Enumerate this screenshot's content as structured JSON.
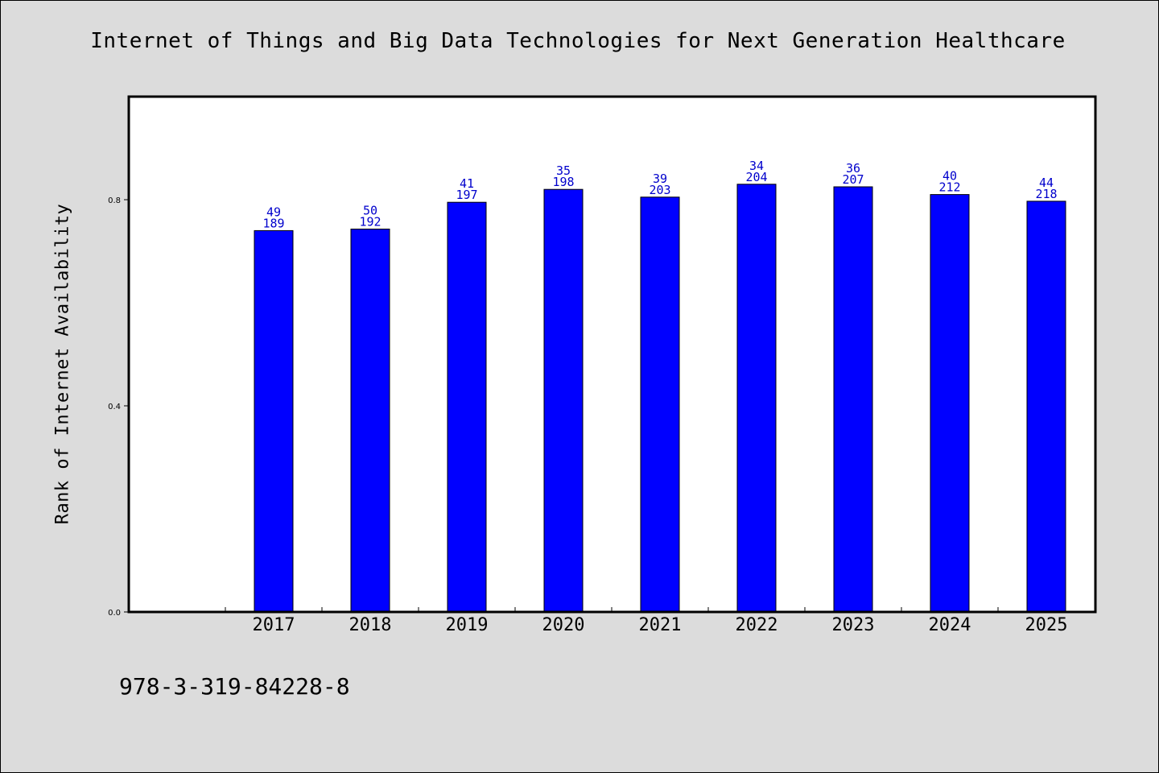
{
  "title": "Internet of Things and Big Data Technologies for Next Generation Healthcare",
  "ylabel": "Rank of Internet Availability",
  "footer_text": "978-3-319-84228-8",
  "colors": {
    "background": "#dcdcdc",
    "plot_background": "#ffffff",
    "bar": "#0000ff",
    "data_label": "#0000cc"
  },
  "chart_data": {
    "type": "bar",
    "title": "Internet of Things and Big Data Technologies for Next Generation Healthcare",
    "xlabel": "",
    "ylabel": "Rank of Internet Availability",
    "categories": [
      "2017",
      "2018",
      "2019",
      "2020",
      "2021",
      "2022",
      "2023",
      "2024",
      "2025"
    ],
    "values": [
      0.74,
      0.743,
      0.795,
      0.82,
      0.805,
      0.83,
      0.825,
      0.81,
      0.797
    ],
    "bar_labels_top": [
      "49",
      "50",
      "41",
      "35",
      "39",
      "34",
      "36",
      "40",
      "44"
    ],
    "bar_labels_bottom": [
      "189",
      "192",
      "197",
      "198",
      "203",
      "204",
      "207",
      "212",
      "218"
    ],
    "yticks": [
      "0.0",
      "0.4",
      "0.8"
    ],
    "ytick_values": [
      0.0,
      0.4,
      0.8
    ],
    "ylim": [
      0,
      1.0
    ],
    "grid": false,
    "legend": "none"
  }
}
